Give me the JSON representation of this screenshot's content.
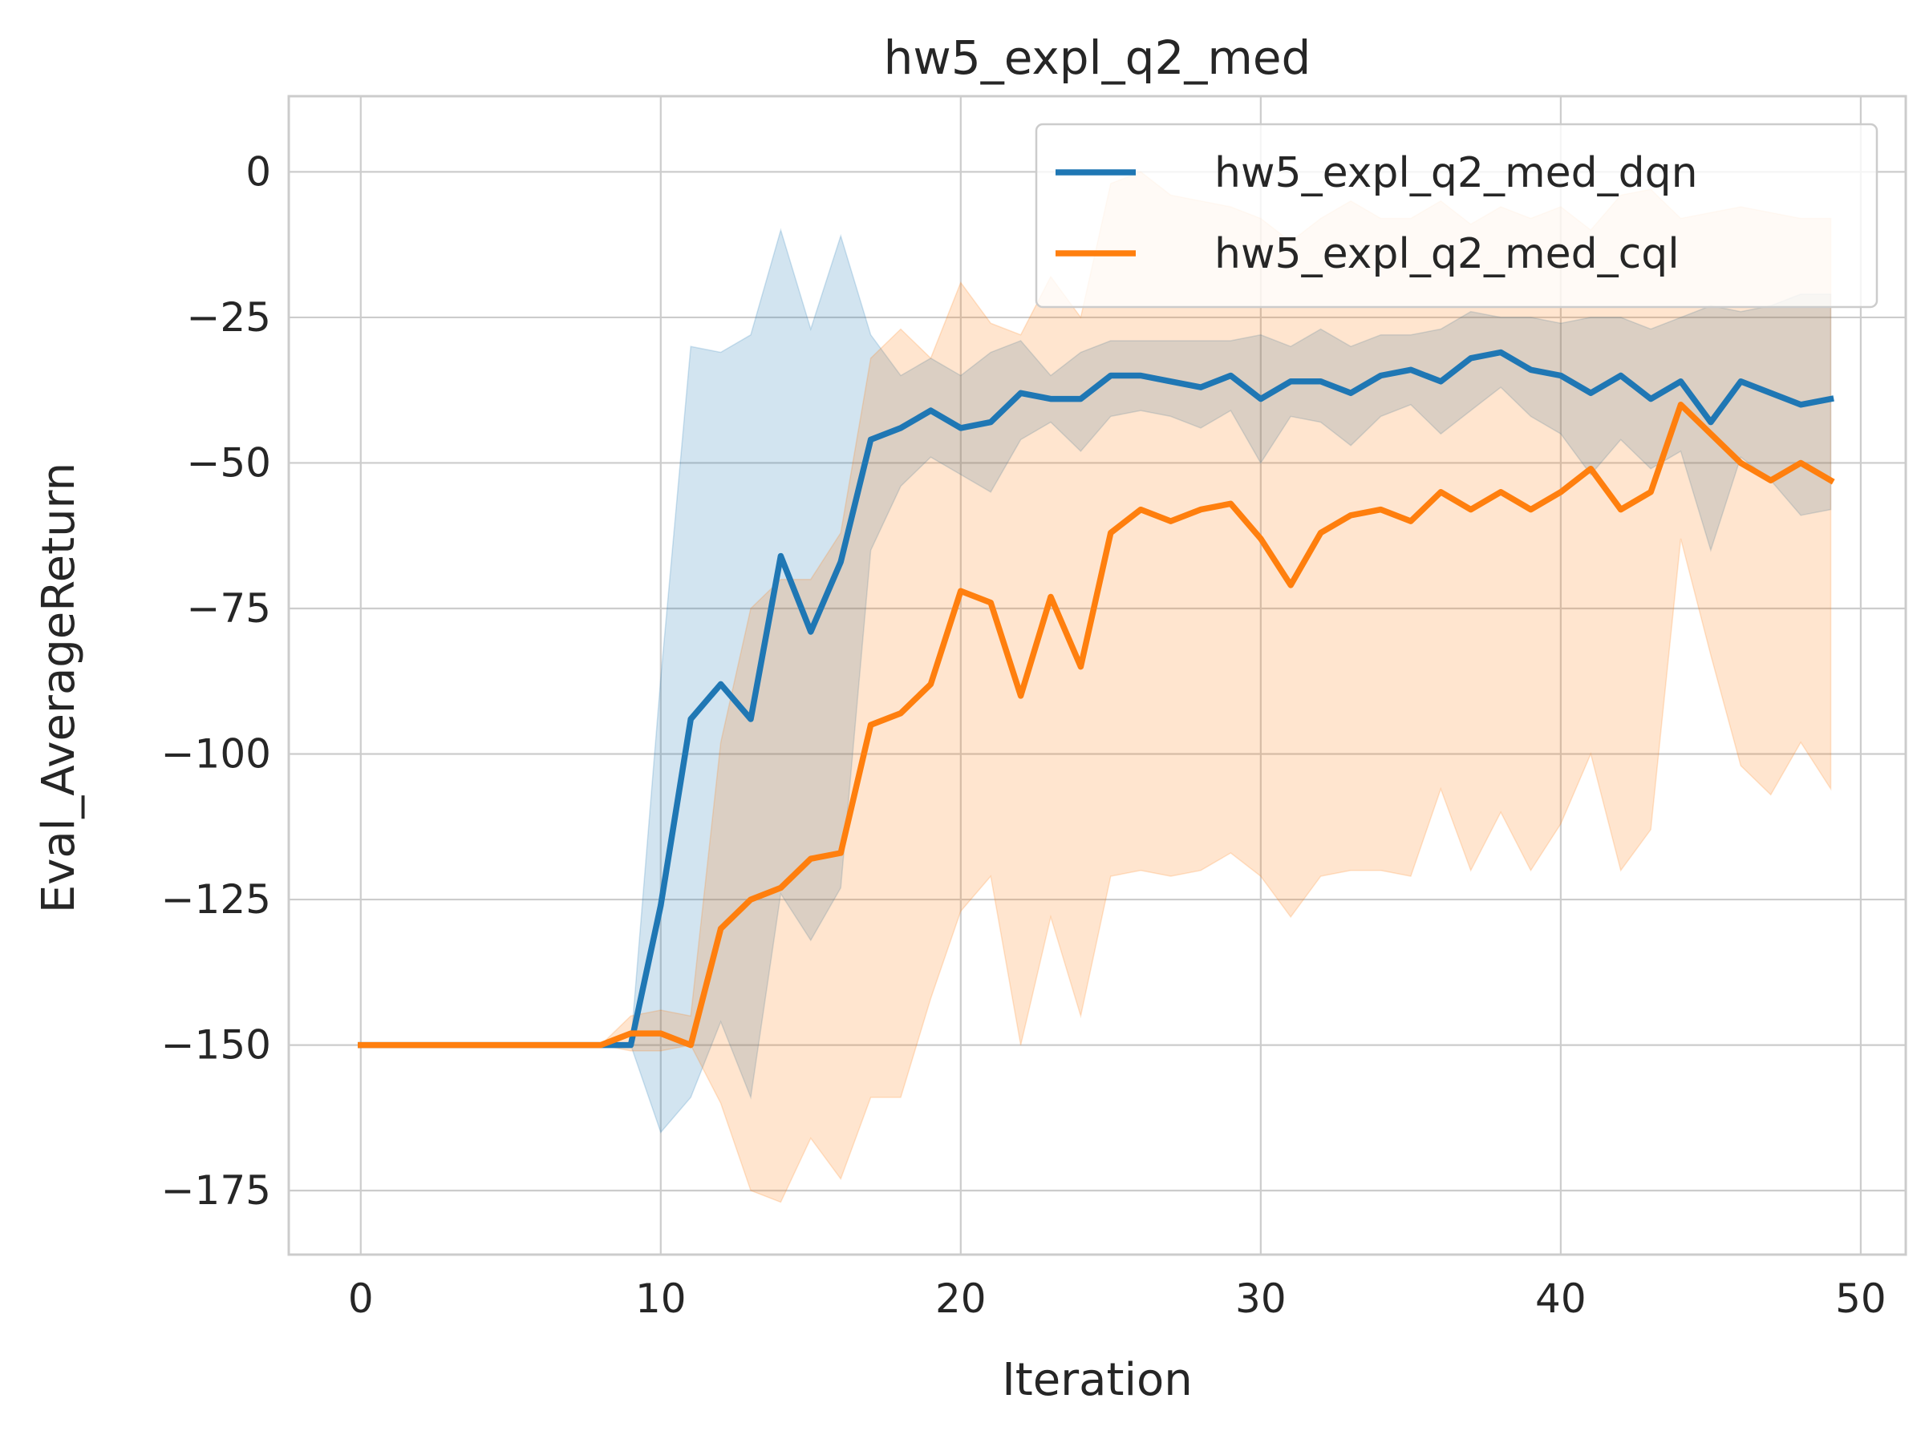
{
  "chart_data": {
    "type": "line",
    "title": "hw5_expl_q2_med",
    "xlabel": "Iteration",
    "ylabel": "Eval_AverageReturn",
    "xlim": [
      -2.4,
      51.5
    ],
    "ylim": [
      -186,
      13
    ],
    "xticks": [
      0,
      10,
      20,
      30,
      40,
      50
    ],
    "yticks": [
      0,
      -25,
      -50,
      -75,
      -100,
      -125,
      -150,
      -175
    ],
    "xtick_labels": [
      "0",
      "10",
      "20",
      "30",
      "40",
      "50"
    ],
    "ytick_labels": [
      "0",
      "−25",
      "−50",
      "−75",
      "−100",
      "−125",
      "−150",
      "−175"
    ],
    "grid": true,
    "legend_position": "upper right",
    "series": [
      {
        "name": "hw5_expl_q2_med_dqn",
        "color": "#1f77b4",
        "x": [
          0,
          1,
          2,
          3,
          4,
          5,
          6,
          7,
          8,
          9,
          10,
          11,
          12,
          13,
          14,
          15,
          16,
          17,
          18,
          19,
          20,
          21,
          22,
          23,
          24,
          25,
          26,
          27,
          28,
          29,
          30,
          31,
          32,
          33,
          34,
          35,
          36,
          37,
          38,
          39,
          40,
          41,
          42,
          43,
          44,
          45,
          46,
          47,
          48,
          49
        ],
        "values": [
          -150,
          -150,
          -150,
          -150,
          -150,
          -150,
          -150,
          -150,
          -150,
          -150,
          -126,
          -94,
          -88,
          -94,
          -66,
          -79,
          -67,
          -46,
          -44,
          -41,
          -44,
          -43,
          -38,
          -39,
          -39,
          -35,
          -35,
          -36,
          -37,
          -35,
          -39,
          -36,
          -36,
          -38,
          -35,
          -34,
          -36,
          -32,
          -31,
          -34,
          -35,
          -38,
          -35,
          -39,
          -36,
          -43,
          -36,
          -38,
          -40,
          -39
        ],
        "upper": [
          -150,
          -150,
          -150,
          -150,
          -150,
          -150,
          -150,
          -150,
          -150,
          -150,
          -87,
          -30,
          -31,
          -28,
          -10,
          -27,
          -11,
          -28,
          -35,
          -32,
          -35,
          -31,
          -29,
          -35,
          -31,
          -29,
          -29,
          -29,
          -29,
          -29,
          -28,
          -30,
          -27,
          -30,
          -28,
          -28,
          -27,
          -24,
          -25,
          -25,
          -26,
          -25,
          -25,
          -27,
          -25,
          -23,
          -24,
          -23,
          -21,
          -21
        ],
        "lower": [
          -150,
          -150,
          -150,
          -150,
          -150,
          -150,
          -150,
          -150,
          -150,
          -150,
          -165,
          -159,
          -146,
          -159,
          -124,
          -132,
          -123,
          -65,
          -54,
          -49,
          -52,
          -55,
          -46,
          -43,
          -48,
          -42,
          -41,
          -42,
          -44,
          -41,
          -50,
          -42,
          -43,
          -47,
          -42,
          -40,
          -45,
          -41,
          -37,
          -42,
          -45,
          -52,
          -46,
          -51,
          -48,
          -65,
          -49,
          -53,
          -59,
          -58
        ]
      },
      {
        "name": "hw5_expl_q2_med_cql",
        "color": "#ff7f0e",
        "x": [
          0,
          1,
          2,
          3,
          4,
          5,
          6,
          7,
          8,
          9,
          10,
          11,
          12,
          13,
          14,
          15,
          16,
          17,
          18,
          19,
          20,
          21,
          22,
          23,
          24,
          25,
          26,
          27,
          28,
          29,
          30,
          31,
          32,
          33,
          34,
          35,
          36,
          37,
          38,
          39,
          40,
          41,
          42,
          43,
          44,
          45,
          46,
          47,
          48,
          49
        ],
        "values": [
          -150,
          -150,
          -150,
          -150,
          -150,
          -150,
          -150,
          -150,
          -150,
          -148,
          -148,
          -150,
          -130,
          -125,
          -123,
          -118,
          -117,
          -95,
          -93,
          -88,
          -72,
          -74,
          -90,
          -73,
          -85,
          -62,
          -58,
          -60,
          -58,
          -57,
          -63,
          -71,
          -62,
          -59,
          -58,
          -60,
          -55,
          -58,
          -55,
          -58,
          -55,
          -51,
          -58,
          -55,
          -40,
          -45,
          -50,
          -53,
          -50,
          -53
        ],
        "upper": [
          -150,
          -150,
          -150,
          -150,
          -150,
          -150,
          -150,
          -150,
          -150,
          -145,
          -144,
          -145,
          -98,
          -75,
          -70,
          -70,
          -62,
          -32,
          -27,
          -32,
          -19,
          -26,
          -28,
          -18,
          -25,
          -2,
          0,
          -4,
          -5,
          -6,
          -8,
          -12,
          -8,
          -5,
          -8,
          -8,
          -5,
          -9,
          -6,
          -8,
          -6,
          -10,
          -4,
          -3,
          -8,
          -7,
          -6,
          -7,
          -8,
          -8
        ],
        "lower": [
          -150,
          -150,
          -150,
          -150,
          -150,
          -150,
          -150,
          -150,
          -150,
          -151,
          -151,
          -150,
          -160,
          -175,
          -177,
          -166,
          -173,
          -159,
          -159,
          -142,
          -127,
          -121,
          -150,
          -128,
          -145,
          -121,
          -120,
          -121,
          -120,
          -117,
          -121,
          -128,
          -121,
          -120,
          -120,
          -121,
          -106,
          -120,
          -110,
          -120,
          -112,
          -100,
          -120,
          -113,
          -63,
          -83,
          -102,
          -107,
          -98,
          -106
        ]
      }
    ]
  }
}
